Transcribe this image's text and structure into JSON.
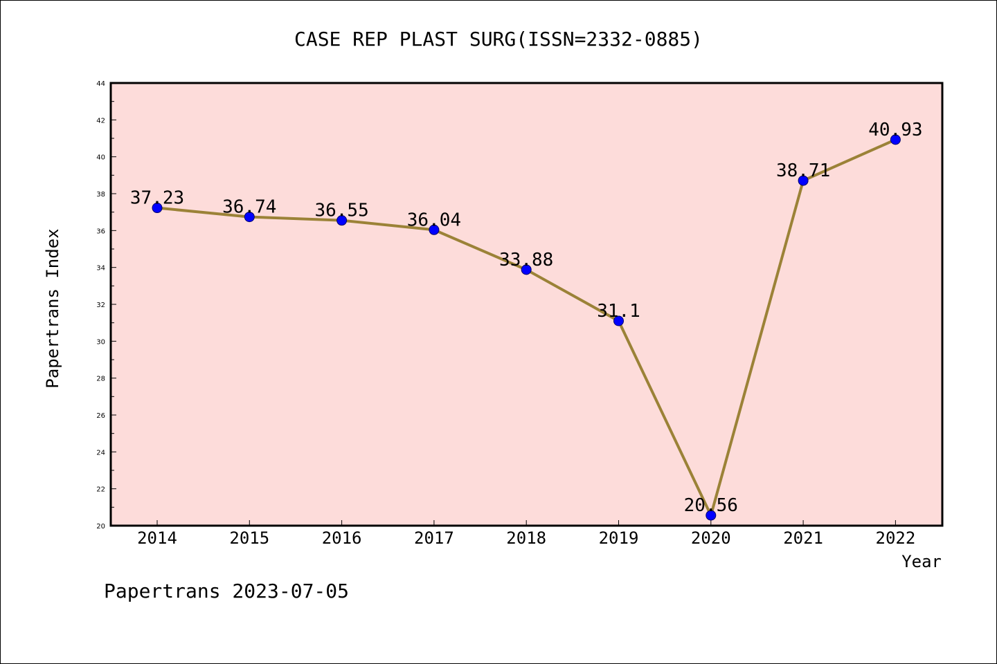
{
  "chart_data": {
    "type": "line",
    "title": "CASE REP PLAST SURG(ISSN=2332-0885)",
    "xlabel": "Year",
    "ylabel": "Papertrans Index",
    "categories": [
      "2014",
      "2015",
      "2016",
      "2017",
      "2018",
      "2019",
      "2020",
      "2021",
      "2022"
    ],
    "series": [
      {
        "values": [
          37.23,
          36.74,
          36.55,
          36.04,
          33.88,
          31.1,
          20.56,
          38.71,
          40.93
        ],
        "labels": [
          "37.23",
          "36.74",
          "36.55",
          "36.04",
          "33.88",
          "31.1",
          "20.56",
          "38.71",
          "40.93"
        ]
      }
    ],
    "ylim": [
      20,
      44
    ],
    "yticks": [
      "20",
      "22",
      "24",
      "26",
      "28",
      "30",
      "32",
      "34",
      "36",
      "38",
      "40",
      "42",
      "44"
    ],
    "grid": false,
    "colors": {
      "plot_background": "#fddcda",
      "line": "#9b8237",
      "marker": "#0000ff"
    }
  },
  "footer": "Papertrans 2023-07-05"
}
